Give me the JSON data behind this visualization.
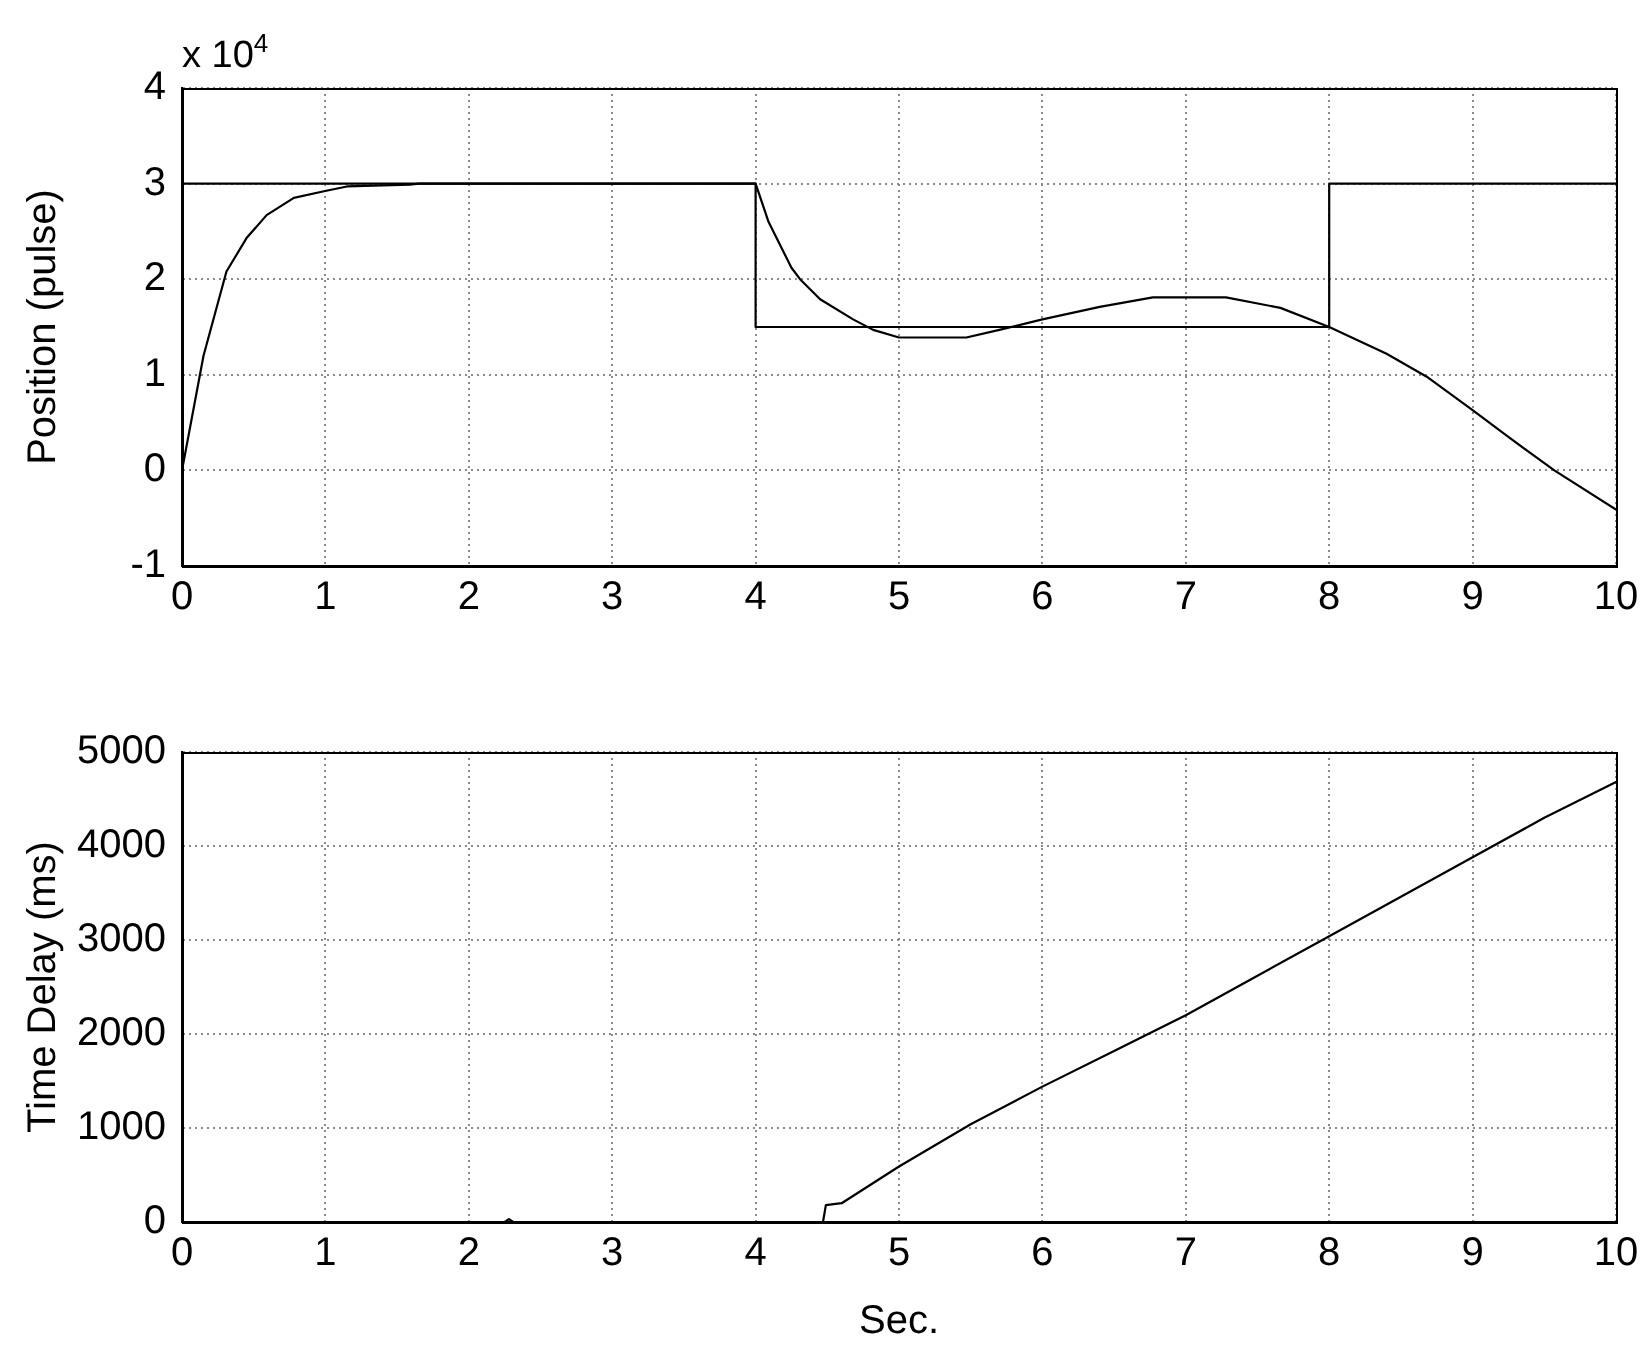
{
  "chart_data": [
    {
      "type": "line",
      "ylabel": "Position (pulse)",
      "annotations": [
        "x 10$^{4}$"
      ],
      "xlim": [
        0,
        10
      ],
      "xticks": [
        0,
        1,
        2,
        3,
        4,
        5,
        6,
        7,
        8,
        9,
        10
      ],
      "ylim": [
        -1,
        4
      ],
      "yticks": [
        -1,
        0,
        1,
        2,
        3,
        4
      ],
      "grid": true,
      "series": [
        {
          "color": "#000000",
          "x": [
            0,
            4,
            4,
            8,
            8,
            10
          ],
          "values": [
            3,
            3,
            1.5,
            1.5,
            3,
            3
          ]
        },
        {
          "color": "#000000",
          "x": [
            0,
            0.15,
            0.29,
            0.31,
            0.45,
            0.59,
            0.78,
            0.99,
            1.15,
            1.59,
            1.65,
            4,
            4.09,
            4.25,
            4.31,
            4.45,
            4.68,
            4.82,
            5,
            5.47,
            5.7,
            6,
            6.4,
            6.77,
            7.28,
            7.66,
            8,
            8.4,
            8.68,
            9,
            9.24,
            9.57,
            10
          ],
          "values": [
            0,
            1.2,
            1.97,
            2.08,
            2.43,
            2.67,
            2.85,
            2.92,
            2.97,
            2.99,
            3,
            3,
            2.6,
            2.12,
            2,
            1.79,
            1.58,
            1.47,
            1.39,
            1.39,
            1.47,
            1.58,
            1.71,
            1.81,
            1.81,
            1.7,
            1.5,
            1.22,
            0.98,
            0.63,
            0.36,
            0,
            -0.41
          ]
        }
      ]
    },
    {
      "type": "line",
      "xlabel": "Sec.",
      "ylabel": "Time Delay (ms)",
      "xlim": [
        0,
        10
      ],
      "xticks": [
        0,
        1,
        2,
        3,
        4,
        5,
        6,
        7,
        8,
        9,
        10
      ],
      "ylim": [
        0,
        5000
      ],
      "yticks": [
        0,
        1000,
        2000,
        3000,
        4000,
        5000
      ],
      "grid": true,
      "series": [
        {
          "color": "#000000",
          "x": [
            0,
            2.25,
            2.28,
            2.31,
            4.47,
            4.49,
            4.6,
            5,
            5.5,
            6,
            6.5,
            7,
            7.5,
            8,
            8.5,
            9,
            9.5,
            10
          ],
          "values": [
            0,
            0,
            30,
            0,
            0,
            180,
            200,
            590,
            1040,
            1440,
            1820,
            2200,
            2620,
            3040,
            3460,
            3880,
            4300,
            4680
          ]
        }
      ]
    }
  ]
}
